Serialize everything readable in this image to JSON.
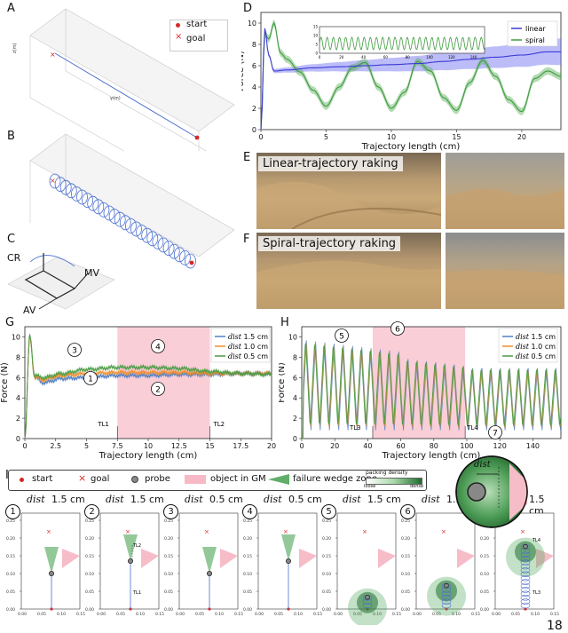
{
  "page_number": "18",
  "panels": {
    "A": {
      "letter": "A",
      "legend": [
        "start",
        "goal"
      ]
    },
    "B": {
      "letter": "B"
    },
    "C": {
      "letter": "C",
      "labels": [
        "CR",
        "MV",
        "AV"
      ]
    },
    "D": {
      "letter": "D",
      "legend": [
        "linear",
        "spiral"
      ],
      "xlabel": "Trajectory length (cm)",
      "ylabel": "Force (N)"
    },
    "E": {
      "letter": "E",
      "caption": "Linear-trajectory raking"
    },
    "F": {
      "letter": "F",
      "caption": "Spiral-trajectory raking"
    },
    "G": {
      "letter": "G",
      "xlabel": "Trajectory length (cm)",
      "ylabel": "Force (N)",
      "markers": [
        "TL1",
        "TL2"
      ],
      "circled": [
        "1",
        "2",
        "3",
        "4"
      ]
    },
    "H": {
      "letter": "H",
      "xlabel": "Trajectory length (cm)",
      "ylabel": "Force (N)",
      "markers": [
        "TL3",
        "TL4"
      ],
      "circled": [
        "5",
        "6",
        "7"
      ]
    },
    "I": {
      "letter": "I"
    }
  },
  "legend_dist": [
    {
      "name": "1.5 cm",
      "prefix": "dist",
      "color": "#4f7fc3"
    },
    {
      "name": "1.0 cm",
      "prefix": "dist",
      "color": "#ef8d2c"
    },
    {
      "name": "0.5 cm",
      "prefix": "dist",
      "color": "#4a9c45"
    }
  ],
  "bottom_legend": {
    "items": [
      "start",
      "goal",
      "probe",
      "object in GM",
      "failure wedge zone"
    ],
    "density_title": "packing density",
    "density_low": "loose",
    "density_high": "dense"
  },
  "inset_label": "dist",
  "bottom_panels": [
    {
      "num": "1",
      "dist": "dist",
      "val": "1.5 cm"
    },
    {
      "num": "2",
      "dist": "dist",
      "val": "1.5 cm"
    },
    {
      "num": "3",
      "dist": "dist",
      "val": "0.5 cm"
    },
    {
      "num": "4",
      "dist": "dist",
      "val": "0.5 cm"
    },
    {
      "num": "5",
      "dist": "dist",
      "val": "1.5 cm"
    },
    {
      "num": "6",
      "dist": "dist",
      "val": "1.5 cm"
    },
    {
      "num": "7",
      "dist": "",
      "val": "1.5 cm"
    }
  ],
  "chart_data": [
    {
      "id": "D",
      "type": "line",
      "xlabel": "Trajectory length (cm)",
      "ylabel": "Force (N)",
      "xlim": [
        0,
        23
      ],
      "ylim": [
        0,
        11
      ],
      "xticks": [
        0,
        5,
        10,
        15,
        20
      ],
      "yticks": [
        0,
        2,
        4,
        6,
        8,
        10
      ],
      "series": [
        {
          "name": "linear",
          "color": "#3a3ad6",
          "x": [
            0,
            0.3,
            0.6,
            1,
            2,
            4,
            6,
            8,
            10,
            12,
            14,
            16,
            18,
            20,
            22,
            23
          ],
          "y": [
            0,
            9.5,
            7,
            5.5,
            5.6,
            5.8,
            5.9,
            6.0,
            6.1,
            6.2,
            6.4,
            6.6,
            6.8,
            7.0,
            7.3,
            7.3
          ]
        },
        {
          "name": "spiral",
          "color": "#3f9a3f",
          "x": [
            0,
            0.3,
            0.6,
            1,
            1.5,
            2,
            3,
            4,
            5,
            6,
            7,
            8,
            9,
            10,
            11,
            12,
            13,
            14,
            15,
            16,
            17,
            18,
            19,
            20,
            21,
            22,
            23
          ],
          "y": [
            0,
            9,
            8.5,
            10,
            7.2,
            6.6,
            5.4,
            3.7,
            2.2,
            4.0,
            5.8,
            6.3,
            4.0,
            2.0,
            3.5,
            6.4,
            5.5,
            3.0,
            1.8,
            4.4,
            6.5,
            5.0,
            2.8,
            1.7,
            4.8,
            5.5,
            5.0
          ]
        }
      ],
      "inset": {
        "xlim": [
          0,
          150
        ],
        "ylim": [
          0,
          15
        ],
        "xticks": [
          0,
          20,
          40,
          60,
          80,
          100,
          120,
          140
        ],
        "yticks": [
          0,
          5,
          10,
          15
        ]
      }
    },
    {
      "id": "G",
      "type": "line",
      "xlabel": "Trajectory length (cm)",
      "ylabel": "Force (N)",
      "xlim": [
        0,
        20
      ],
      "ylim": [
        0,
        11
      ],
      "xticks": [
        0,
        2.5,
        5,
        7.5,
        10,
        12.5,
        15,
        17.5,
        20
      ],
      "yticks": [
        0,
        2,
        4,
        6,
        8,
        10
      ],
      "shade": [
        7.5,
        15
      ],
      "series": [
        {
          "name": "dist 1.5 cm",
          "x": [
            0,
            0.4,
            0.8,
            1.5,
            3,
            5,
            7.5,
            10,
            12.5,
            15,
            17.5,
            20
          ],
          "y": [
            0,
            10,
            6,
            5.5,
            5.9,
            6.0,
            6.2,
            6.2,
            6.3,
            6.3,
            6.4,
            6.4
          ]
        },
        {
          "name": "dist 1.0 cm",
          "x": [
            0,
            0.4,
            0.8,
            1.5,
            3,
            5,
            7.5,
            10,
            12.5,
            15,
            17.5,
            20
          ],
          "y": [
            0,
            10,
            6,
            5.8,
            6.2,
            6.4,
            6.5,
            6.5,
            6.5,
            6.4,
            6.4,
            6.4
          ]
        },
        {
          "name": "dist 0.5 cm",
          "x": [
            0,
            0.4,
            0.8,
            1.5,
            3,
            5,
            7.5,
            10,
            12.5,
            15,
            17.5,
            20
          ],
          "y": [
            0,
            10.2,
            6.2,
            6.0,
            6.4,
            6.8,
            7.0,
            7.0,
            6.9,
            6.6,
            6.4,
            6.3
          ]
        }
      ],
      "annotations": [
        {
          "label": "TL1",
          "x": 7.5
        },
        {
          "label": "TL2",
          "x": 15
        }
      ]
    },
    {
      "id": "H",
      "type": "line",
      "xlabel": "Trajectory length (cm)",
      "ylabel": "Force (N)",
      "xlim": [
        0,
        157
      ],
      "ylim": [
        0,
        11
      ],
      "xticks": [
        0,
        20,
        40,
        60,
        80,
        100,
        120,
        140
      ],
      "yticks": [
        0,
        2,
        4,
        6,
        8,
        10
      ],
      "shade": [
        43,
        99
      ],
      "oscillation": {
        "period": 5.6,
        "peak_early": 9.8,
        "peak_late": 7.0,
        "trough": 0.9
      },
      "series": [
        {
          "name": "dist 1.5 cm"
        },
        {
          "name": "dist 1.0 cm"
        },
        {
          "name": "dist 0.5 cm"
        }
      ],
      "annotations": [
        {
          "label": "TL3",
          "x": 43
        },
        {
          "label": "TL4",
          "x": 99
        }
      ]
    }
  ]
}
